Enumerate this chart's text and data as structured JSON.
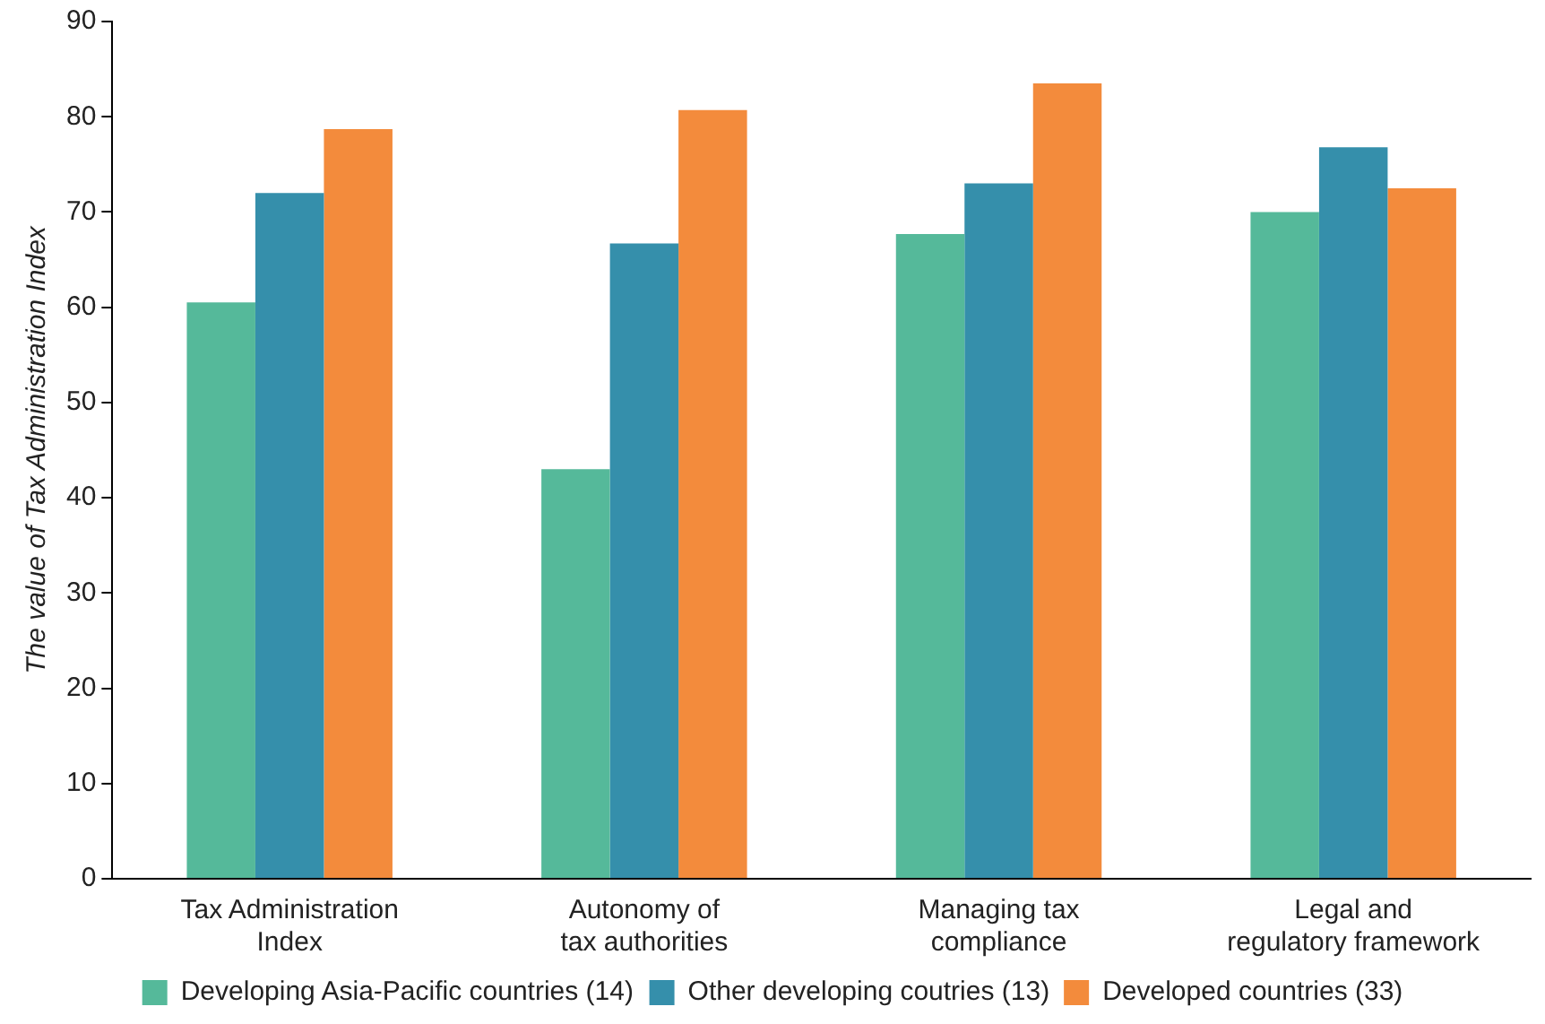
{
  "chart_data": {
    "type": "bar",
    "ylabel": "The value of Tax Administration Index",
    "categories": [
      "Tax Administration Index",
      "Autonomy of tax authorities",
      "Managing tax compliance",
      "Legal and regulatory framework"
    ],
    "series": [
      {
        "name": "Developing Asia-Pacific countries (14)",
        "color": "#55b99a",
        "values": [
          60.5,
          43,
          67.7,
          70
        ]
      },
      {
        "name": "Other developing coutries (13)",
        "color": "#358fab",
        "values": [
          72,
          66.7,
          73,
          76.8
        ]
      },
      {
        "name": "Developed countries (33)",
        "color": "#f38b3c",
        "values": [
          78.7,
          80.7,
          83.5,
          72.5
        ]
      }
    ],
    "ylim": [
      0,
      90
    ],
    "yticks": [
      0,
      10,
      20,
      30,
      40,
      50,
      60,
      70,
      80,
      90
    ],
    "grid": false,
    "legend": "bottom"
  }
}
